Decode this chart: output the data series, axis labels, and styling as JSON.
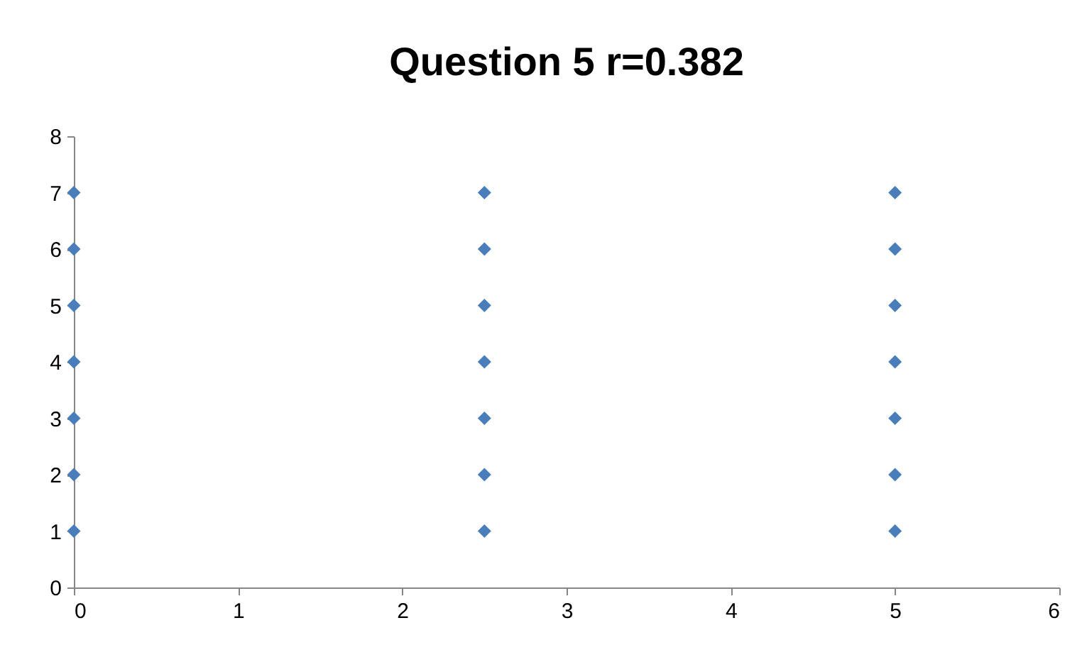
{
  "chart_data": {
    "type": "scatter",
    "title": "Question 5 r=0.382",
    "x": [
      0,
      0,
      0,
      0,
      0,
      0,
      0,
      2.5,
      2.5,
      2.5,
      2.5,
      2.5,
      2.5,
      2.5,
      5,
      5,
      5,
      5,
      5,
      5,
      5
    ],
    "values": [
      1,
      2,
      3,
      4,
      5,
      6,
      7,
      1,
      2,
      3,
      4,
      5,
      6,
      7,
      1,
      2,
      3,
      4,
      5,
      6,
      7
    ],
    "color": "#4a7ebb",
    "marker": "diamond",
    "xlim": [
      0,
      6
    ],
    "xticks": [
      0,
      1,
      2,
      3,
      4,
      5,
      6
    ],
    "ylim": [
      0,
      8
    ],
    "yticks": [
      0,
      1,
      2,
      3,
      4,
      5,
      6,
      7,
      8
    ]
  }
}
